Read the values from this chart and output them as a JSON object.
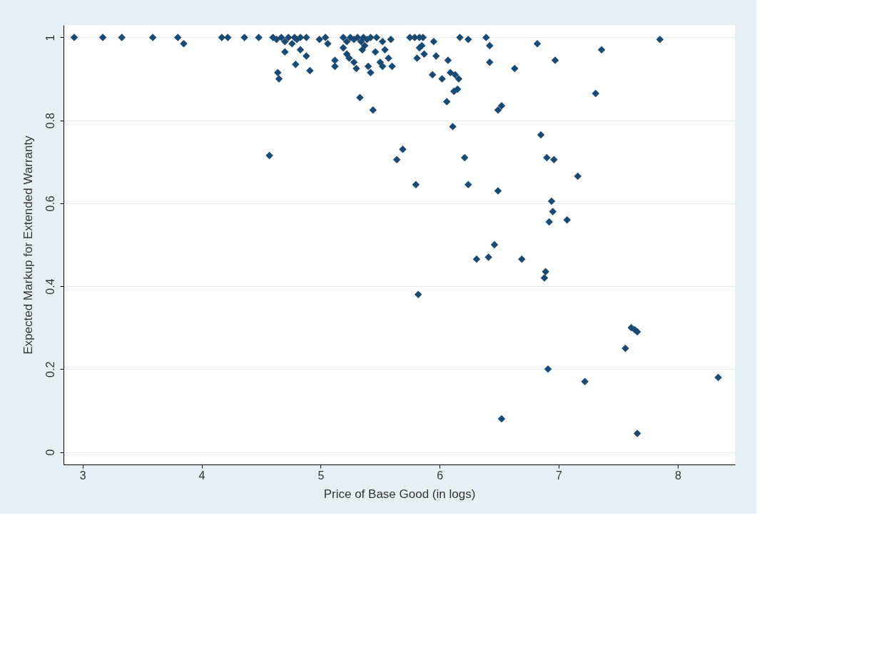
{
  "chart_data": {
    "type": "scatter",
    "xlabel": "Price of Base Good (in logs)",
    "ylabel": "Expected Markup for Extended Warranty",
    "x": [
      2.93,
      3.17,
      3.33,
      3.59,
      3.8,
      3.85,
      4.17,
      4.22,
      4.36,
      4.48,
      4.6,
      4.63,
      4.67,
      4.7,
      4.73,
      4.76,
      4.78,
      4.8,
      4.83,
      4.88,
      4.99,
      5.04,
      5.06,
      5.19,
      5.22,
      5.25,
      5.28,
      5.31,
      5.34,
      5.36,
      5.39,
      5.42,
      5.47,
      5.52,
      5.59,
      5.75,
      5.79,
      5.83,
      5.86,
      5.95,
      6.17,
      6.24,
      6.39,
      6.82,
      7.85,
      4.7,
      4.79,
      4.83,
      4.88,
      4.91,
      4.64,
      4.65,
      4.57,
      5.12,
      5.12,
      5.19,
      5.22,
      5.24,
      5.28,
      5.3,
      5.33,
      5.35,
      5.37,
      5.4,
      5.42,
      5.44,
      5.46,
      5.5,
      5.52,
      5.54,
      5.57,
      5.6,
      5.64,
      5.69,
      5.8,
      5.81,
      5.83,
      5.85,
      5.82,
      5.87,
      5.94,
      5.97,
      6.02,
      6.06,
      6.07,
      6.09,
      6.11,
      6.12,
      6.13,
      6.15,
      6.16,
      6.21,
      6.24,
      6.31,
      6.41,
      6.42,
      6.42,
      6.46,
      6.49,
      6.49,
      6.52,
      6.52,
      6.63,
      6.69,
      6.85,
      6.88,
      6.89,
      6.9,
      6.91,
      6.92,
      6.94,
      6.95,
      6.96,
      6.97,
      7.07,
      7.16,
      7.22,
      7.31,
      7.36,
      7.56,
      7.61,
      7.64,
      7.66,
      7.66,
      8.34
    ],
    "series": [
      {
        "color": "#1a4a72",
        "values": [
          1,
          1,
          1,
          1,
          1,
          0.985,
          1,
          1,
          1,
          1,
          1,
          0.995,
          1,
          0.99,
          1,
          0.985,
          1,
          0.995,
          1,
          1,
          0.995,
          1,
          0.985,
          1,
          0.99,
          1,
          0.995,
          1,
          0.99,
          1,
          0.995,
          1,
          1,
          0.99,
          0.995,
          1,
          1,
          1,
          1,
          0.99,
          1,
          0.995,
          1,
          0.985,
          0.995,
          0.965,
          0.935,
          0.97,
          0.955,
          0.92,
          0.915,
          0.9,
          0.715,
          0.945,
          0.93,
          0.975,
          0.96,
          0.95,
          0.94,
          0.925,
          0.855,
          0.97,
          0.98,
          0.93,
          0.915,
          0.825,
          0.965,
          0.94,
          0.93,
          0.97,
          0.95,
          0.93,
          0.705,
          0.73,
          0.645,
          0.95,
          0.975,
          0.98,
          0.38,
          0.96,
          0.91,
          0.955,
          0.9,
          0.845,
          0.945,
          0.915,
          0.785,
          0.87,
          0.91,
          0.875,
          0.9,
          0.71,
          0.645,
          0.465,
          0.47,
          0.98,
          0.94,
          0.5,
          0.63,
          0.825,
          0.835,
          0.08,
          0.925,
          0.465,
          0.765,
          0.42,
          0.435,
          0.71,
          0.2,
          0.555,
          0.605,
          0.58,
          0.705,
          0.945,
          0.56,
          0.665,
          0.17,
          0.865,
          0.97,
          0.25,
          0.3,
          0.295,
          0.29,
          0.045,
          0.18
        ]
      }
    ],
    "xlim": [
      2.84,
      8.48
    ],
    "ylim": [
      -0.03,
      1.03
    ],
    "xticks": [
      3,
      4,
      5,
      6,
      7,
      8
    ],
    "yticks": [
      0,
      0.2,
      0.4,
      0.6,
      0.8,
      1
    ],
    "grid": "y",
    "marker": "diamond"
  }
}
